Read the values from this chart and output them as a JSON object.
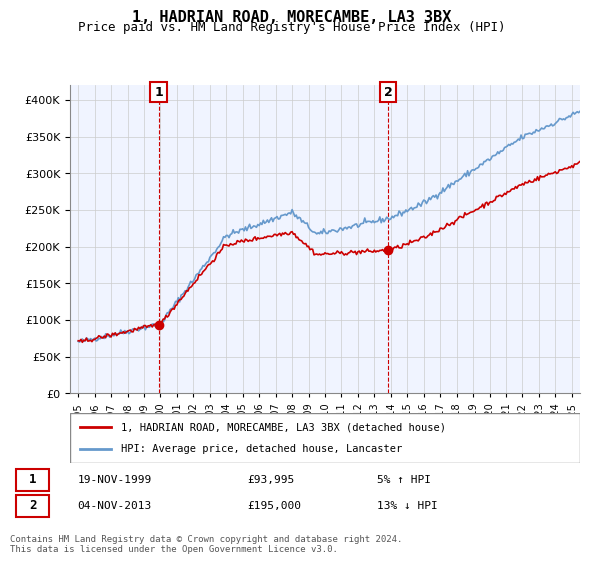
{
  "title": "1, HADRIAN ROAD, MORECAMBE, LA3 3BX",
  "subtitle": "Price paid vs. HM Land Registry's House Price Index (HPI)",
  "legend_line1": "1, HADRIAN ROAD, MORECAMBE, LA3 3BX (detached house)",
  "legend_line2": "HPI: Average price, detached house, Lancaster",
  "table_rows": [
    {
      "num": "1",
      "date": "19-NOV-1999",
      "price": "£93,995",
      "hpi": "5% ↑ HPI"
    },
    {
      "num": "2",
      "date": "04-NOV-2013",
      "price": "£195,000",
      "hpi": "13% ↓ HPI"
    }
  ],
  "footnote": "Contains HM Land Registry data © Crown copyright and database right 2024.\nThis data is licensed under the Open Government Licence v3.0.",
  "sale1_year": 1999.88,
  "sale1_value": 93995,
  "sale2_year": 2013.84,
  "sale2_value": 195000,
  "red_line_color": "#cc0000",
  "blue_line_color": "#6699cc",
  "background_color": "#ffffff",
  "grid_color": "#cccccc",
  "ylim_min": 0,
  "ylim_max": 420000,
  "xlim_min": 1994.5,
  "xlim_max": 2025.5
}
